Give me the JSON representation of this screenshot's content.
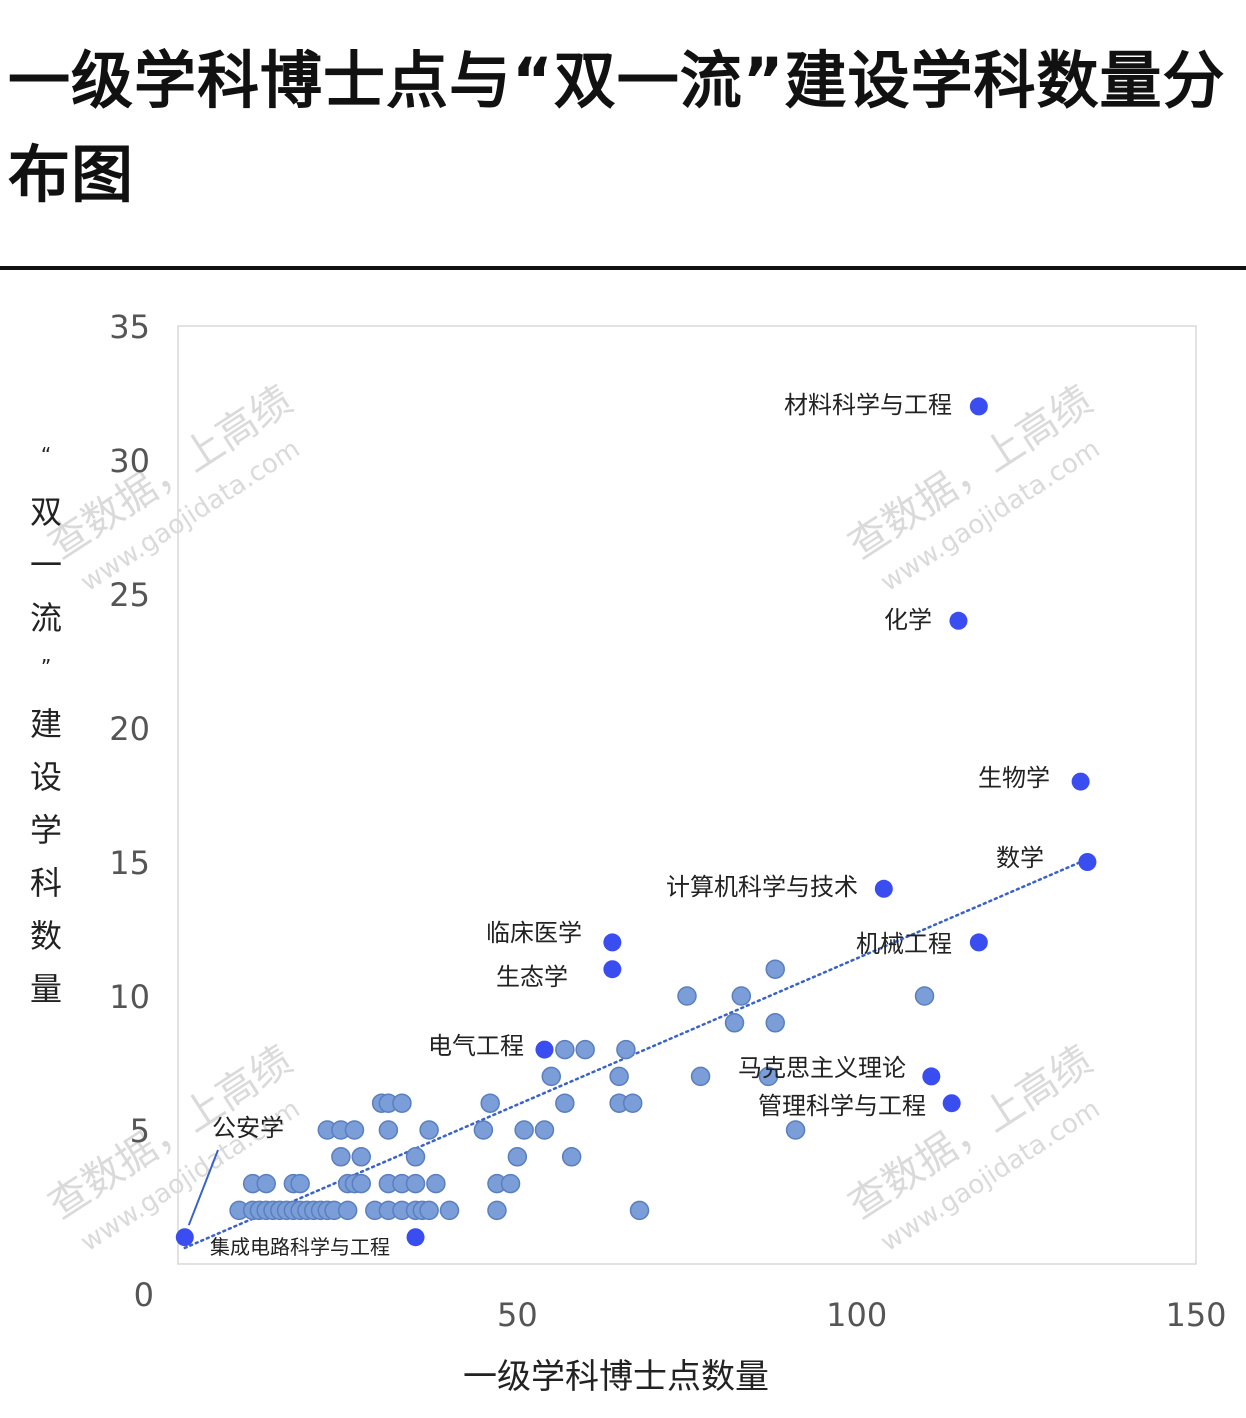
{
  "title": "一级学科博士点与“双一流”建设学科数量分布图",
  "watermark": {
    "cn": "查数据，上高绩",
    "url": "www.gaojidata.com"
  },
  "chart_data": {
    "type": "scatter",
    "xlabel": "一级学科博士点数量",
    "ylabel": "“双一流”建设学科数量",
    "xlim": [
      0,
      150
    ],
    "ylim": [
      0,
      35
    ],
    "x_ticks": [
      "50",
      "100",
      "150"
    ],
    "y_ticks": [
      "0",
      "5",
      "10",
      "15",
      "20",
      "25",
      "30",
      "35"
    ],
    "grid": false,
    "colors": {
      "labeled": "#3a4df0",
      "other": "#7b9ed8",
      "other_edge": "#5a7fc0",
      "trend": "#3a63c8"
    },
    "trendline": {
      "style": "dotted",
      "from": [
        1,
        0.6
      ],
      "to": [
        133,
        15
      ]
    },
    "labeled_points": [
      {
        "name": "材料科学与工程",
        "x": 118,
        "y": 32
      },
      {
        "name": "化学",
        "x": 115,
        "y": 24
      },
      {
        "name": "生物学",
        "x": 133,
        "y": 18
      },
      {
        "name": "数学",
        "x": 134,
        "y": 15
      },
      {
        "name": "计算机科学与技术",
        "x": 104,
        "y": 14
      },
      {
        "name": "机械工程",
        "x": 118,
        "y": 12
      },
      {
        "name": "临床医学",
        "x": 64,
        "y": 12
      },
      {
        "name": "生态学",
        "x": 64,
        "y": 11
      },
      {
        "name": "电气工程",
        "x": 54,
        "y": 8
      },
      {
        "name": "马克思主义理论",
        "x": 111,
        "y": 7
      },
      {
        "name": "管理科学与工程",
        "x": 114,
        "y": 6
      },
      {
        "name": "公安学",
        "x": 1,
        "y": 1
      },
      {
        "name": "集成电路科学与工程",
        "x": 35,
        "y": 1
      }
    ],
    "other_points": [
      [
        88,
        11
      ],
      [
        75,
        10
      ],
      [
        83,
        10
      ],
      [
        110,
        10
      ],
      [
        82,
        9
      ],
      [
        88,
        9
      ],
      [
        57,
        8
      ],
      [
        60,
        8
      ],
      [
        66,
        8
      ],
      [
        55,
        7
      ],
      [
        65,
        7
      ],
      [
        77,
        7
      ],
      [
        87,
        7
      ],
      [
        30,
        6
      ],
      [
        31,
        6
      ],
      [
        33,
        6
      ],
      [
        46,
        6
      ],
      [
        57,
        6
      ],
      [
        65,
        6
      ],
      [
        67,
        6
      ],
      [
        22,
        5
      ],
      [
        24,
        5
      ],
      [
        26,
        5
      ],
      [
        31,
        5
      ],
      [
        37,
        5
      ],
      [
        45,
        5
      ],
      [
        51,
        5
      ],
      [
        54,
        5
      ],
      [
        91,
        5
      ],
      [
        24,
        4
      ],
      [
        27,
        4
      ],
      [
        35,
        4
      ],
      [
        50,
        4
      ],
      [
        58,
        4
      ],
      [
        11,
        3
      ],
      [
        13,
        3
      ],
      [
        17,
        3
      ],
      [
        18,
        3
      ],
      [
        25,
        3
      ],
      [
        26,
        3
      ],
      [
        27,
        3
      ],
      [
        31,
        3
      ],
      [
        33,
        3
      ],
      [
        35,
        3
      ],
      [
        38,
        3
      ],
      [
        47,
        3
      ],
      [
        49,
        3
      ],
      [
        9,
        2
      ],
      [
        11,
        2
      ],
      [
        12,
        2
      ],
      [
        13,
        2
      ],
      [
        14,
        2
      ],
      [
        15,
        2
      ],
      [
        16,
        2
      ],
      [
        17,
        2
      ],
      [
        18,
        2
      ],
      [
        19,
        2
      ],
      [
        20,
        2
      ],
      [
        21,
        2
      ],
      [
        22,
        2
      ],
      [
        23,
        2
      ],
      [
        25,
        2
      ],
      [
        29,
        2
      ],
      [
        31,
        2
      ],
      [
        33,
        2
      ],
      [
        35,
        2
      ],
      [
        36,
        2
      ],
      [
        37,
        2
      ],
      [
        40,
        2
      ],
      [
        47,
        2
      ],
      [
        68,
        2
      ]
    ]
  }
}
